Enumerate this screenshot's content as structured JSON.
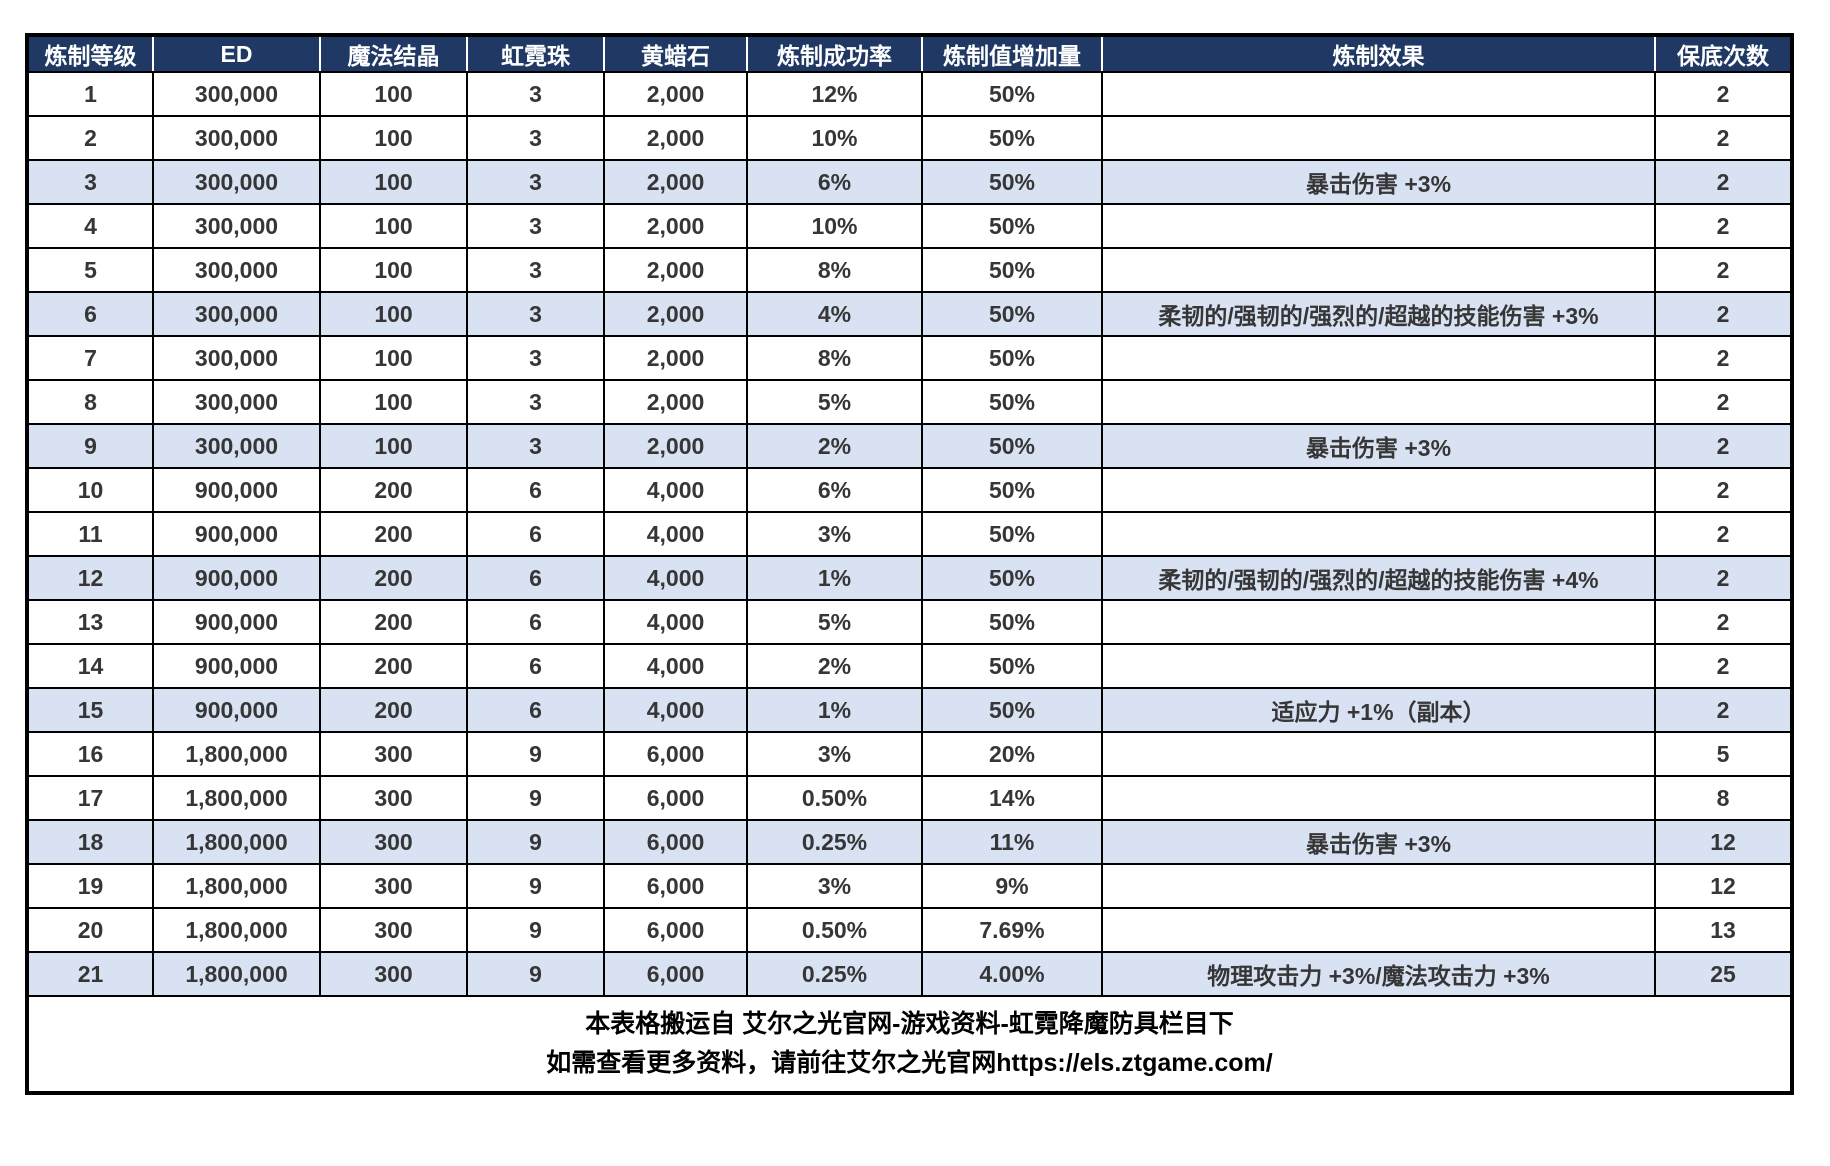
{
  "colors": {
    "header_bg": "#1f3864",
    "header_text": "#ffffff",
    "stripe_bg": "#d9e2f3",
    "body_text": "#363636",
    "border": "#000000"
  },
  "table": {
    "columns": [
      {
        "id": "level",
        "label": "炼制等级"
      },
      {
        "id": "ed",
        "label": "ED"
      },
      {
        "id": "crystal",
        "label": "魔法结晶"
      },
      {
        "id": "pearl",
        "label": "虹霓珠"
      },
      {
        "id": "wax",
        "label": "黄蜡石"
      },
      {
        "id": "success",
        "label": "炼制成功率"
      },
      {
        "id": "increase",
        "label": "炼制值增加量"
      },
      {
        "id": "effect",
        "label": "炼制效果"
      },
      {
        "id": "guarantee",
        "label": "保底次数"
      }
    ],
    "rows": [
      {
        "level": "1",
        "ed": "300,000",
        "crystal": "100",
        "pearl": "3",
        "wax": "2,000",
        "success": "12%",
        "increase": "50%",
        "effect": "",
        "guarantee": "2"
      },
      {
        "level": "2",
        "ed": "300,000",
        "crystal": "100",
        "pearl": "3",
        "wax": "2,000",
        "success": "10%",
        "increase": "50%",
        "effect": "",
        "guarantee": "2"
      },
      {
        "level": "3",
        "ed": "300,000",
        "crystal": "100",
        "pearl": "3",
        "wax": "2,000",
        "success": "6%",
        "increase": "50%",
        "effect": "暴击伤害 +3%",
        "guarantee": "2"
      },
      {
        "level": "4",
        "ed": "300,000",
        "crystal": "100",
        "pearl": "3",
        "wax": "2,000",
        "success": "10%",
        "increase": "50%",
        "effect": "",
        "guarantee": "2"
      },
      {
        "level": "5",
        "ed": "300,000",
        "crystal": "100",
        "pearl": "3",
        "wax": "2,000",
        "success": "8%",
        "increase": "50%",
        "effect": "",
        "guarantee": "2"
      },
      {
        "level": "6",
        "ed": "300,000",
        "crystal": "100",
        "pearl": "3",
        "wax": "2,000",
        "success": "4%",
        "increase": "50%",
        "effect": "柔韧的/强韧的/强烈的/超越的技能伤害 +3%",
        "guarantee": "2"
      },
      {
        "level": "7",
        "ed": "300,000",
        "crystal": "100",
        "pearl": "3",
        "wax": "2,000",
        "success": "8%",
        "increase": "50%",
        "effect": "",
        "guarantee": "2"
      },
      {
        "level": "8",
        "ed": "300,000",
        "crystal": "100",
        "pearl": "3",
        "wax": "2,000",
        "success": "5%",
        "increase": "50%",
        "effect": "",
        "guarantee": "2"
      },
      {
        "level": "9",
        "ed": "300,000",
        "crystal": "100",
        "pearl": "3",
        "wax": "2,000",
        "success": "2%",
        "increase": "50%",
        "effect": "暴击伤害 +3%",
        "guarantee": "2"
      },
      {
        "level": "10",
        "ed": "900,000",
        "crystal": "200",
        "pearl": "6",
        "wax": "4,000",
        "success": "6%",
        "increase": "50%",
        "effect": "",
        "guarantee": "2"
      },
      {
        "level": "11",
        "ed": "900,000",
        "crystal": "200",
        "pearl": "6",
        "wax": "4,000",
        "success": "3%",
        "increase": "50%",
        "effect": "",
        "guarantee": "2"
      },
      {
        "level": "12",
        "ed": "900,000",
        "crystal": "200",
        "pearl": "6",
        "wax": "4,000",
        "success": "1%",
        "increase": "50%",
        "effect": "柔韧的/强韧的/强烈的/超越的技能伤害 +4%",
        "guarantee": "2"
      },
      {
        "level": "13",
        "ed": "900,000",
        "crystal": "200",
        "pearl": "6",
        "wax": "4,000",
        "success": "5%",
        "increase": "50%",
        "effect": "",
        "guarantee": "2"
      },
      {
        "level": "14",
        "ed": "900,000",
        "crystal": "200",
        "pearl": "6",
        "wax": "4,000",
        "success": "2%",
        "increase": "50%",
        "effect": "",
        "guarantee": "2"
      },
      {
        "level": "15",
        "ed": "900,000",
        "crystal": "200",
        "pearl": "6",
        "wax": "4,000",
        "success": "1%",
        "increase": "50%",
        "effect": "适应力 +1%（副本）",
        "guarantee": "2"
      },
      {
        "level": "16",
        "ed": "1,800,000",
        "crystal": "300",
        "pearl": "9",
        "wax": "6,000",
        "success": "3%",
        "increase": "20%",
        "effect": "",
        "guarantee": "5"
      },
      {
        "level": "17",
        "ed": "1,800,000",
        "crystal": "300",
        "pearl": "9",
        "wax": "6,000",
        "success": "0.50%",
        "increase": "14%",
        "effect": "",
        "guarantee": "8"
      },
      {
        "level": "18",
        "ed": "1,800,000",
        "crystal": "300",
        "pearl": "9",
        "wax": "6,000",
        "success": "0.25%",
        "increase": "11%",
        "effect": "暴击伤害 +3%",
        "guarantee": "12"
      },
      {
        "level": "19",
        "ed": "1,800,000",
        "crystal": "300",
        "pearl": "9",
        "wax": "6,000",
        "success": "3%",
        "increase": "9%",
        "effect": "",
        "guarantee": "12"
      },
      {
        "level": "20",
        "ed": "1,800,000",
        "crystal": "300",
        "pearl": "9",
        "wax": "6,000",
        "success": "0.50%",
        "increase": "7.69%",
        "effect": "",
        "guarantee": "13"
      },
      {
        "level": "21",
        "ed": "1,800,000",
        "crystal": "300",
        "pearl": "9",
        "wax": "6,000",
        "success": "0.25%",
        "increase": "4.00%",
        "effect": "物理攻击力 +3%/魔法攻击力 +3%",
        "guarantee": "25"
      }
    ],
    "footer_lines": [
      "本表格搬运自 艾尔之光官网-游戏资料-虹霓降魔防具栏目下",
      "如需查看更多资料，请前往艾尔之光官网https://els.ztgame.com/"
    ]
  }
}
